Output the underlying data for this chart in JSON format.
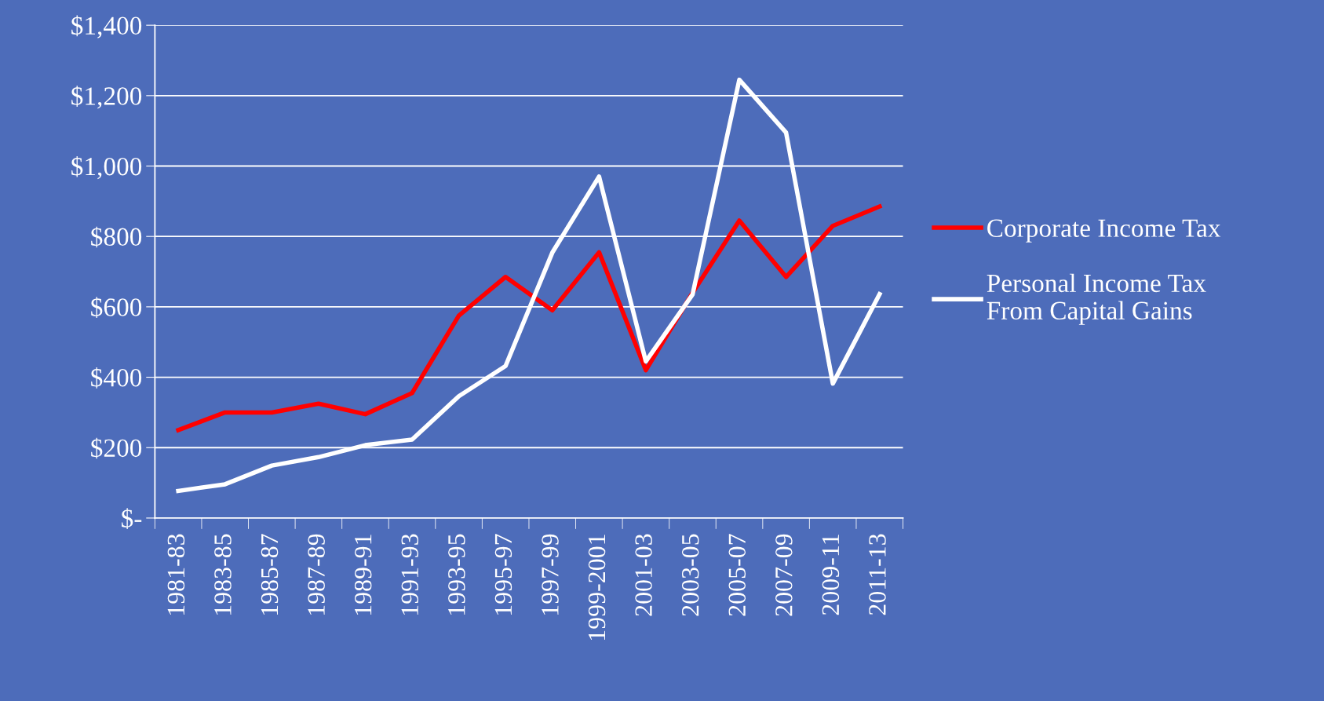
{
  "chart_data": {
    "type": "line",
    "categories": [
      "1981-83",
      "1983-85",
      "1985-87",
      "1987-89",
      "1989-91",
      "1991-93",
      "1993-95",
      "1995-97",
      "1997-99",
      "1999-2001",
      "2001-03",
      "2003-05",
      "2005-07",
      "2007-09",
      "2009-11",
      "2011-13"
    ],
    "series": [
      {
        "name": "Corporate Income Tax",
        "color": "#ff0000",
        "values": [
          250,
          300,
          300,
          325,
          295,
          355,
          575,
          685,
          590,
          755,
          420,
          640,
          845,
          685,
          830,
          885
        ]
      },
      {
        "name": "Personal Income Tax\nFrom Capital Gains",
        "color": "#ffffff",
        "values": [
          77,
          96,
          149,
          173,
          207,
          223,
          346,
          432,
          754,
          970,
          445,
          635,
          1245,
          1095,
          382,
          636
        ]
      }
    ],
    "ylim": [
      0,
      1400
    ],
    "yticks": [
      {
        "value": 0,
        "label": "$-"
      },
      {
        "value": 200,
        "label": "$200"
      },
      {
        "value": 400,
        "label": "$400"
      },
      {
        "value": 600,
        "label": "$600"
      },
      {
        "value": 800,
        "label": "$800"
      },
      {
        "value": 1000,
        "label": "$1,000"
      },
      {
        "value": 1200,
        "label": "$1,200"
      },
      {
        "value": 1400,
        "label": "$1,400"
      }
    ],
    "grid": "y",
    "legend": "right",
    "marker": "none",
    "line_style": "solid"
  }
}
